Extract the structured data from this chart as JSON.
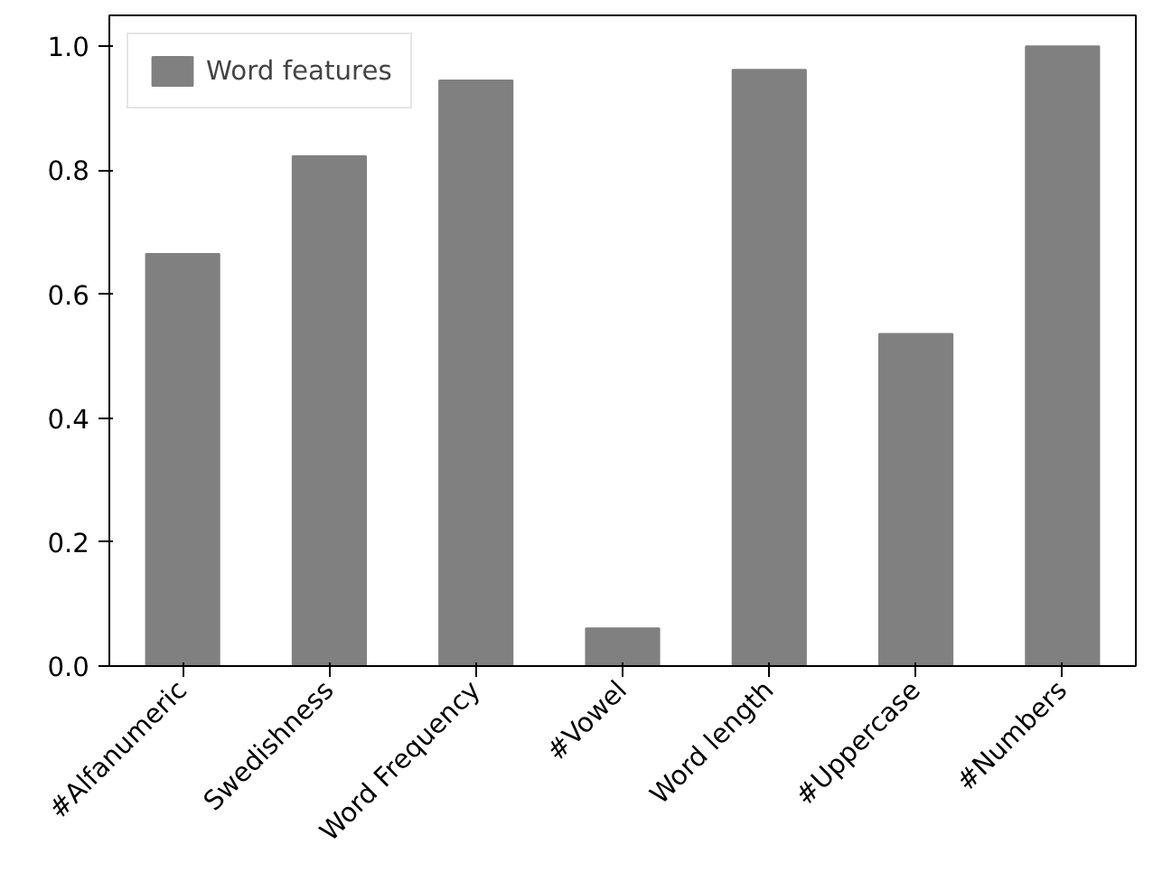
{
  "chart_data": {
    "type": "bar",
    "categories": [
      "#Alfanumeric",
      "Swedishness",
      "Word Frequency",
      "#Vowel",
      "Word length",
      "#Uppercase",
      "#Numbers"
    ],
    "series": [
      {
        "name": "Word features",
        "color": "#808080",
        "values": [
          0.665,
          0.823,
          0.945,
          0.061,
          0.962,
          0.536,
          1.0
        ]
      }
    ],
    "ylim": [
      0,
      1.05
    ],
    "yticks": [
      {
        "value": 0,
        "label": "0.0"
      },
      {
        "value": 0.2,
        "label": "0.2"
      },
      {
        "value": 0.4,
        "label": "0.4"
      },
      {
        "value": 0.6,
        "label": "0.6"
      },
      {
        "value": 0.8,
        "label": "0.8"
      },
      {
        "value": 1.0,
        "label": "1.0"
      }
    ],
    "grid": false,
    "legend": "top left"
  }
}
